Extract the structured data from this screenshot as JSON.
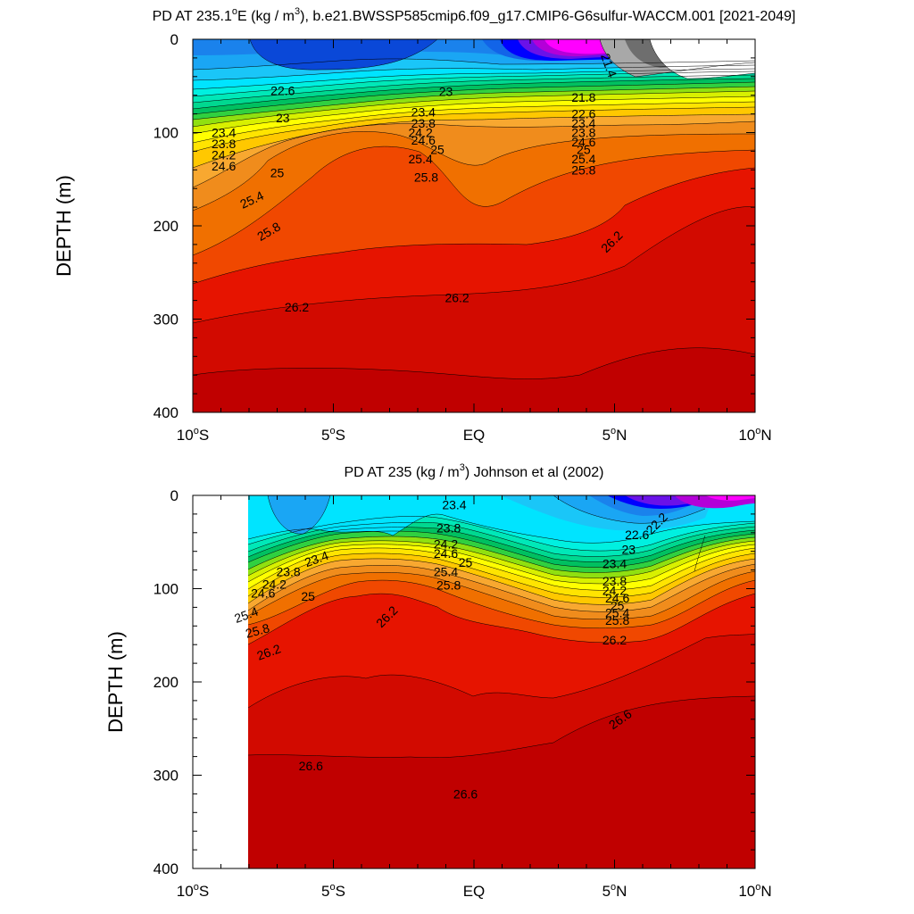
{
  "chart_data": [
    {
      "type": "contour",
      "title": "PD AT 235.1°E (kg / m³), b.e21.BWSSP585cmip6.f09_g17.CMIP6-G6sulfur-WACCM.001 [2021-2049]",
      "title_parts": {
        "pre": "PD AT 235.1",
        "deg": "o",
        "mid": "E (kg / m",
        "sup": "3",
        "post": "), b.e21.BWSSP585cmip6.f09_g17.CMIP6-G6sulfur-WACCM.001 [2021-2049]"
      },
      "ylabel": "DEPTH (m)",
      "xlabel": "",
      "xlim": [
        -10,
        10
      ],
      "ylim": [
        400,
        0
      ],
      "y_reversed": true,
      "x_tick_values": [
        -10,
        -5,
        0,
        5,
        10
      ],
      "x_tick_labels": [
        {
          "main": "10",
          "deg": "o",
          "hemi": "S"
        },
        {
          "main": "5",
          "deg": "o",
          "hemi": "S"
        },
        {
          "main": "EQ",
          "deg": "",
          "hemi": ""
        },
        {
          "main": "5",
          "deg": "o",
          "hemi": "N"
        },
        {
          "main": "10",
          "deg": "o",
          "hemi": "N"
        }
      ],
      "y_tick_values": [
        0,
        100,
        200,
        300,
        400
      ],
      "y_tick_labels": [
        "0",
        "100",
        "200",
        "300",
        "400"
      ],
      "contour_levels": [
        21.4,
        21.8,
        22.2,
        22.6,
        23,
        23.4,
        23.8,
        24.2,
        24.6,
        25,
        25.4,
        25.8,
        26.2
      ],
      "level_colors": [
        "#ffffff",
        "#6e6e6e",
        "#a8a8a8",
        "#ff00ff",
        "#b400d8",
        "#6a12e8",
        "#0000ff",
        "#0a2ce8",
        "#0a48d8",
        "#1264e8",
        "#1a82ec",
        "#1aa6f4",
        "#1ac6f8",
        "#00e4ff",
        "#00f0e0",
        "#00e8b8",
        "#00d890",
        "#00c060",
        "#30d040",
        "#90e010",
        "#d8f000",
        "#ffff00",
        "#ffe400",
        "#ffc800",
        "#f8a830",
        "#f08c1c",
        "#f07000",
        "#f04800",
        "#f02800",
        "#e61400",
        "#d20a00",
        "#c00000"
      ],
      "mask_x_below": null,
      "labels": [
        {
          "text": "22.6",
          "x": -6.8,
          "y": 55,
          "angle": 0
        },
        {
          "text": "23",
          "x": -1.0,
          "y": 56,
          "angle": 0
        },
        {
          "text": "21.4",
          "x": 4.8,
          "y": 28,
          "angle": 70
        },
        {
          "text": "21.8",
          "x": 3.9,
          "y": 62,
          "angle": 0
        },
        {
          "text": "23",
          "x": -6.8,
          "y": 84,
          "angle": 0
        },
        {
          "text": "23.4",
          "x": -1.8,
          "y": 78,
          "angle": 0
        },
        {
          "text": "23.4",
          "x": -8.9,
          "y": 100,
          "angle": 0
        },
        {
          "text": "23.8",
          "x": -1.8,
          "y": 90,
          "angle": 0
        },
        {
          "text": "23.8",
          "x": -8.9,
          "y": 112,
          "angle": 0
        },
        {
          "text": "24.2",
          "x": -1.9,
          "y": 100,
          "angle": 0
        },
        {
          "text": "24.6",
          "x": -1.8,
          "y": 108,
          "angle": 0
        },
        {
          "text": "25",
          "x": -1.3,
          "y": 118,
          "angle": 0
        },
        {
          "text": "24.2",
          "x": -8.9,
          "y": 124,
          "angle": 0
        },
        {
          "text": "24.6",
          "x": -8.9,
          "y": 136,
          "angle": 0
        },
        {
          "text": "25",
          "x": -7.0,
          "y": 143,
          "angle": 0
        },
        {
          "text": "25.4",
          "x": -1.9,
          "y": 128,
          "angle": 0
        },
        {
          "text": "25.8",
          "x": -1.7,
          "y": 148,
          "angle": 0
        },
        {
          "text": "25.4",
          "x": -7.9,
          "y": 172,
          "angle": -25
        },
        {
          "text": "25.8",
          "x": -7.3,
          "y": 206,
          "angle": -30
        },
        {
          "text": "26.2",
          "x": 4.9,
          "y": 217,
          "angle": -45
        },
        {
          "text": "26.2",
          "x": -6.3,
          "y": 287,
          "angle": 0
        },
        {
          "text": "26.2",
          "x": -0.6,
          "y": 277,
          "angle": 0
        },
        {
          "text": "22.6",
          "x": 3.9,
          "y": 80,
          "angle": 0
        },
        {
          "text": "23.4",
          "x": 3.9,
          "y": 90,
          "angle": 0
        },
        {
          "text": "23.8",
          "x": 3.9,
          "y": 100,
          "angle": 0
        },
        {
          "text": "24.6",
          "x": 3.9,
          "y": 110,
          "angle": 0
        },
        {
          "text": "25",
          "x": 3.9,
          "y": 118,
          "angle": 0
        },
        {
          "text": "25.4",
          "x": 3.9,
          "y": 128,
          "angle": 0
        },
        {
          "text": "25.8",
          "x": 3.9,
          "y": 140,
          "angle": 0
        }
      ]
    },
    {
      "type": "contour",
      "title": "PD AT 235 (kg / m³) Johnson et al (2002)",
      "title_parts": {
        "pre": "PD AT 235 (kg / m",
        "deg": "",
        "mid": "",
        "sup": "3",
        "post": ") Johnson et al (2002)"
      },
      "ylabel": "DEPTH (m)",
      "xlabel": "",
      "xlim": [
        -10,
        10
      ],
      "ylim": [
        400,
        0
      ],
      "y_reversed": true,
      "x_tick_values": [
        -10,
        -5,
        0,
        5,
        10
      ],
      "x_tick_labels": [
        {
          "main": "10",
          "deg": "o",
          "hemi": "S"
        },
        {
          "main": "5",
          "deg": "o",
          "hemi": "S"
        },
        {
          "main": "EQ",
          "deg": "",
          "hemi": ""
        },
        {
          "main": "5",
          "deg": "o",
          "hemi": "N"
        },
        {
          "main": "10",
          "deg": "o",
          "hemi": "N"
        }
      ],
      "y_tick_values": [
        0,
        100,
        200,
        300,
        400
      ],
      "y_tick_labels": [
        "0",
        "100",
        "200",
        "300",
        "400"
      ],
      "contour_levels": [
        22.2,
        22.6,
        23,
        23.4,
        23.8,
        24.2,
        24.6,
        25,
        25.4,
        25.8,
        26.2,
        26.6
      ],
      "level_colors": [
        "#ffffff",
        "#6e6e6e",
        "#a8a8a8",
        "#ff00ff",
        "#b400d8",
        "#6a12e8",
        "#0000ff",
        "#0a2ce8",
        "#0a48d8",
        "#1264e8",
        "#1a82ec",
        "#1aa6f4",
        "#1ac6f8",
        "#00e4ff",
        "#00f0e0",
        "#00e8b8",
        "#00d890",
        "#00c060",
        "#30d040",
        "#90e010",
        "#d8f000",
        "#ffff00",
        "#ffe400",
        "#ffc800",
        "#f8a830",
        "#f08c1c",
        "#f07000",
        "#f04800",
        "#f02800",
        "#e61400",
        "#d20a00",
        "#c00000"
      ],
      "mask_x_below": -8.0,
      "labels": [
        {
          "text": "23.4",
          "x": -0.7,
          "y": 10,
          "angle": 0
        },
        {
          "text": "22.2",
          "x": 6.5,
          "y": 30,
          "angle": -45
        },
        {
          "text": "23.8",
          "x": -0.9,
          "y": 35,
          "angle": 0
        },
        {
          "text": "22.6",
          "x": 5.8,
          "y": 42,
          "angle": 0
        },
        {
          "text": "24.2",
          "x": -1.0,
          "y": 52,
          "angle": 0
        },
        {
          "text": "23",
          "x": 5.5,
          "y": 58,
          "angle": 0
        },
        {
          "text": "23.4",
          "x": -5.6,
          "y": 68,
          "angle": -20
        },
        {
          "text": "24.6",
          "x": -1.0,
          "y": 62,
          "angle": 0
        },
        {
          "text": "25",
          "x": -0.3,
          "y": 72,
          "angle": 0
        },
        {
          "text": "23.4",
          "x": 5.0,
          "y": 73,
          "angle": 0
        },
        {
          "text": "23.8",
          "x": -6.6,
          "y": 82,
          "angle": 0
        },
        {
          "text": "25.4",
          "x": -1.0,
          "y": 82,
          "angle": 0
        },
        {
          "text": "24.2",
          "x": -7.1,
          "y": 95,
          "angle": 0
        },
        {
          "text": "25.8",
          "x": -0.9,
          "y": 96,
          "angle": 0
        },
        {
          "text": "23.8",
          "x": 5.0,
          "y": 92,
          "angle": 0
        },
        {
          "text": "24.6",
          "x": -7.5,
          "y": 105,
          "angle": 0
        },
        {
          "text": "25",
          "x": -5.9,
          "y": 108,
          "angle": 0
        },
        {
          "text": "24.2",
          "x": 5.0,
          "y": 102,
          "angle": 0
        },
        {
          "text": "24.6",
          "x": 5.1,
          "y": 110,
          "angle": 0
        },
        {
          "text": "25",
          "x": 5.1,
          "y": 118,
          "angle": 0
        },
        {
          "text": "25.4",
          "x": 5.1,
          "y": 126,
          "angle": 0
        },
        {
          "text": "25.8",
          "x": 5.1,
          "y": 134,
          "angle": 0
        },
        {
          "text": "25.4",
          "x": -8.1,
          "y": 128,
          "angle": -20
        },
        {
          "text": "25.8",
          "x": -7.7,
          "y": 145,
          "angle": -15
        },
        {
          "text": "26.2",
          "x": -3.1,
          "y": 130,
          "angle": -45
        },
        {
          "text": "26.2",
          "x": -7.3,
          "y": 168,
          "angle": -20
        },
        {
          "text": "26.2",
          "x": 5.0,
          "y": 155,
          "angle": 0
        },
        {
          "text": "26.6",
          "x": 5.2,
          "y": 240,
          "angle": -35
        },
        {
          "text": "26.6",
          "x": -5.8,
          "y": 290,
          "angle": 0
        },
        {
          "text": "26.6",
          "x": -0.3,
          "y": 320,
          "angle": 0
        }
      ]
    }
  ]
}
